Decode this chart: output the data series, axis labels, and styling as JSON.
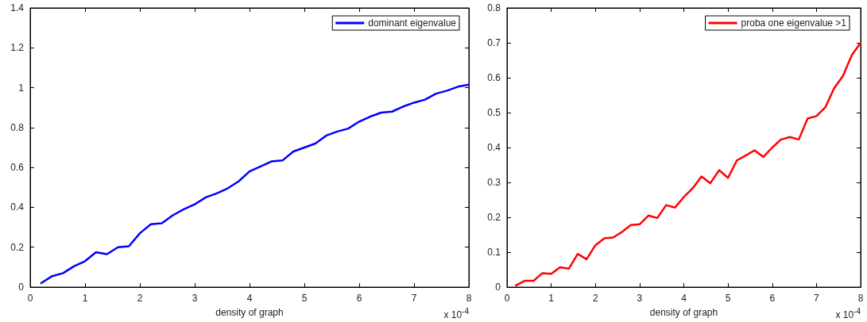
{
  "chart_data": [
    {
      "type": "line",
      "xlabel": "density of graph",
      "annotations": [
        "x 10$^{-4}$"
      ],
      "x": [
        0.2,
        0.4,
        0.6,
        0.8,
        1.0,
        1.2,
        1.4,
        1.6,
        1.8,
        2.0,
        2.2,
        2.4,
        2.6,
        2.8,
        3.0,
        3.2,
        3.4,
        3.6,
        3.8,
        4.0,
        4.2,
        4.4,
        4.6,
        4.8,
        5.0,
        5.2,
        5.4,
        5.6,
        5.8,
        6.0,
        6.2,
        6.4,
        6.6,
        6.8,
        7.0,
        7.2,
        7.4,
        7.6,
        7.8,
        8.0
      ],
      "series": [
        {
          "name": "dominant eigenvalue",
          "color": "#0000ff",
          "values": [
            0.02,
            0.055,
            0.07,
            0.105,
            0.13,
            0.175,
            0.165,
            0.2,
            0.205,
            0.27,
            0.315,
            0.32,
            0.36,
            0.39,
            0.415,
            0.45,
            0.47,
            0.495,
            0.53,
            0.58,
            0.605,
            0.63,
            0.635,
            0.68,
            0.7,
            0.72,
            0.76,
            0.78,
            0.795,
            0.83,
            0.855,
            0.875,
            0.88,
            0.905,
            0.925,
            0.94,
            0.97,
            0.985,
            1.005,
            1.015
          ]
        }
      ],
      "xlim": [
        0,
        8
      ],
      "xticks": [
        0,
        1,
        2,
        3,
        4,
        5,
        6,
        7,
        8
      ],
      "ylim": [
        0,
        1.4
      ],
      "yticks": [
        0,
        0.2,
        0.4,
        0.6,
        0.8,
        1,
        1.2,
        1.4
      ],
      "grid": false,
      "legend": "top right",
      "marker": "none",
      "line_style": "solid"
    },
    {
      "type": "line",
      "xlabel": "density of graph",
      "annotations": [
        "x 10$^{-4}$"
      ],
      "x": [
        0.2,
        0.4,
        0.6,
        0.8,
        1.0,
        1.2,
        1.4,
        1.6,
        1.8,
        2.0,
        2.2,
        2.4,
        2.6,
        2.8,
        3.0,
        3.2,
        3.4,
        3.6,
        3.8,
        4.0,
        4.2,
        4.4,
        4.6,
        4.8,
        5.0,
        5.2,
        5.4,
        5.6,
        5.8,
        6.0,
        6.2,
        6.4,
        6.6,
        6.8,
        7.0,
        7.2,
        7.4,
        7.6,
        7.8,
        8.0
      ],
      "series": [
        {
          "name": "proba one eigenvalue >1",
          "color": "#ff0000",
          "values": [
            0.005,
            0.018,
            0.018,
            0.04,
            0.038,
            0.057,
            0.053,
            0.095,
            0.08,
            0.12,
            0.14,
            0.142,
            0.158,
            0.178,
            0.18,
            0.205,
            0.198,
            0.235,
            0.228,
            0.258,
            0.283,
            0.317,
            0.298,
            0.335,
            0.313,
            0.363,
            0.377,
            0.392,
            0.373,
            0.4,
            0.423,
            0.43,
            0.423,
            0.483,
            0.49,
            0.515,
            0.57,
            0.605,
            0.665,
            0.7
          ]
        }
      ],
      "xlim": [
        0,
        8
      ],
      "xticks": [
        0,
        1,
        2,
        3,
        4,
        5,
        6,
        7,
        8
      ],
      "ylim": [
        0,
        0.8
      ],
      "yticks": [
        0,
        0.1,
        0.2,
        0.3,
        0.4,
        0.5,
        0.6,
        0.7,
        0.8
      ],
      "grid": false,
      "legend": "top right",
      "marker": "none",
      "line_style": "solid"
    }
  ]
}
